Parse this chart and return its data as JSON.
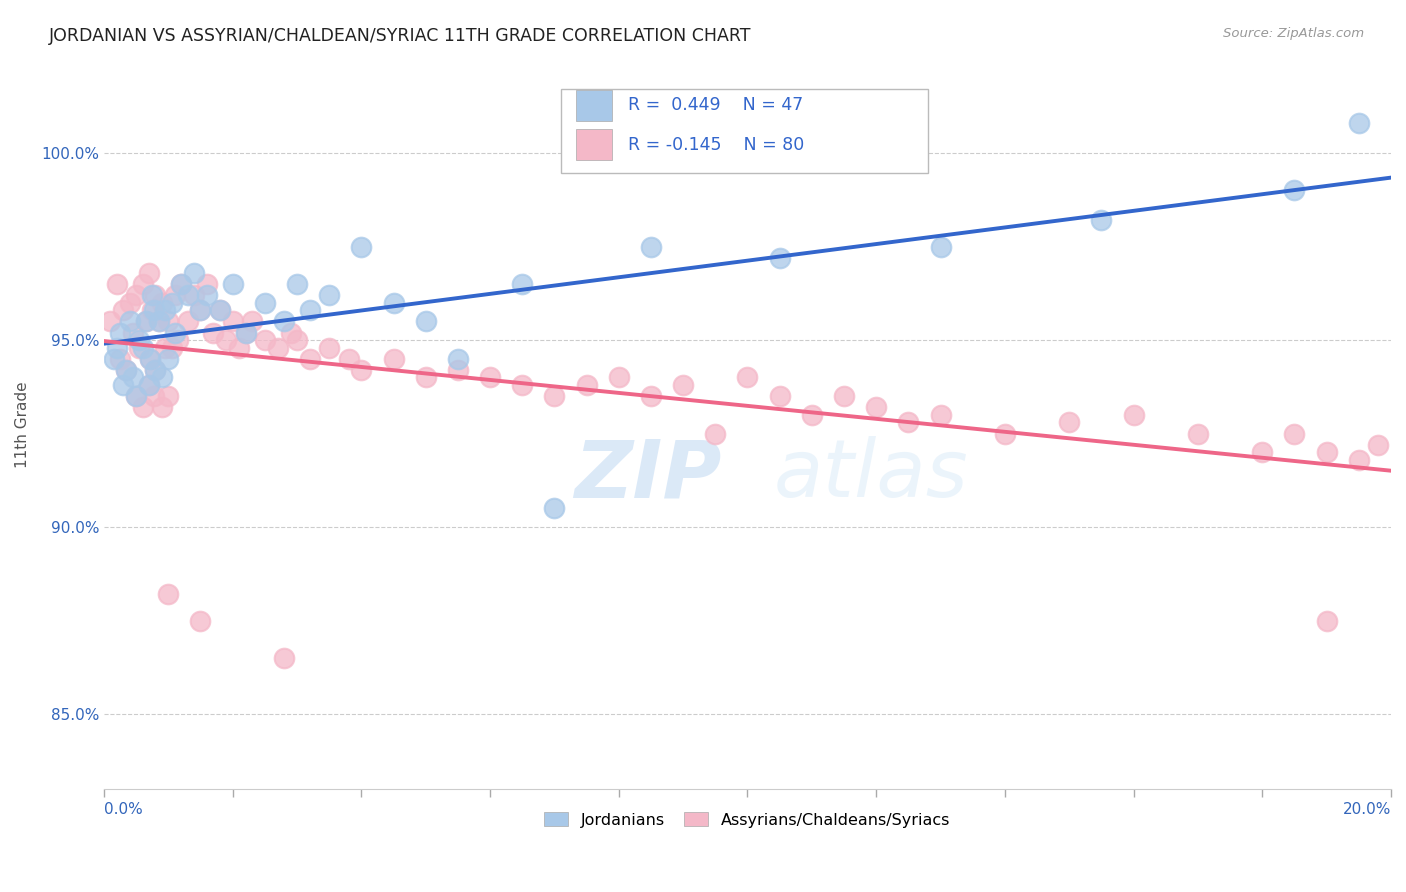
{
  "title": "JORDANIAN VS ASSYRIAN/CHALDEAN/SYRIAC 11TH GRADE CORRELATION CHART",
  "source": "Source: ZipAtlas.com",
  "ylabel": "11th Grade",
  "x_min": 0.0,
  "x_max": 20.0,
  "y_min": 83.0,
  "y_max": 102.5,
  "blue_R": 0.449,
  "blue_N": 47,
  "pink_R": -0.145,
  "pink_N": 80,
  "blue_color": "#A8C8E8",
  "pink_color": "#F4B8C8",
  "line_blue": "#3366CC",
  "line_pink": "#EE6688",
  "legend_label_blue": "Jordanians",
  "legend_label_pink": "Assyrians/Chaldeans/Syriacs",
  "watermark_zip": "ZIP",
  "watermark_atlas": "atlas",
  "blue_x": [
    0.15,
    0.2,
    0.25,
    0.3,
    0.35,
    0.4,
    0.45,
    0.5,
    0.55,
    0.6,
    0.65,
    0.7,
    0.72,
    0.75,
    0.78,
    0.8,
    0.85,
    0.9,
    0.95,
    1.0,
    1.05,
    1.1,
    1.2,
    1.3,
    1.4,
    1.5,
    1.6,
    1.8,
    2.0,
    2.2,
    2.5,
    2.8,
    3.0,
    3.2,
    3.5,
    4.0,
    4.5,
    5.0,
    5.5,
    6.5,
    7.0,
    8.5,
    10.5,
    13.0,
    15.5,
    18.5,
    19.5
  ],
  "blue_y": [
    94.5,
    94.8,
    95.2,
    93.8,
    94.2,
    95.5,
    94.0,
    93.5,
    95.0,
    94.8,
    95.5,
    93.8,
    94.5,
    96.2,
    95.8,
    94.2,
    95.5,
    94.0,
    95.8,
    94.5,
    96.0,
    95.2,
    96.5,
    96.2,
    96.8,
    95.8,
    96.2,
    95.8,
    96.5,
    95.2,
    96.0,
    95.5,
    96.5,
    95.8,
    96.2,
    97.5,
    96.0,
    95.5,
    94.5,
    96.5,
    90.5,
    97.5,
    97.2,
    97.5,
    98.2,
    99.0,
    100.8
  ],
  "pink_x": [
    0.1,
    0.2,
    0.25,
    0.3,
    0.35,
    0.4,
    0.45,
    0.5,
    0.5,
    0.55,
    0.6,
    0.6,
    0.65,
    0.7,
    0.7,
    0.72,
    0.75,
    0.78,
    0.8,
    0.8,
    0.85,
    0.9,
    0.9,
    0.95,
    1.0,
    1.0,
    1.05,
    1.1,
    1.15,
    1.2,
    1.3,
    1.4,
    1.5,
    1.6,
    1.7,
    1.8,
    1.9,
    2.0,
    2.1,
    2.2,
    2.3,
    2.5,
    2.7,
    2.9,
    3.0,
    3.2,
    3.5,
    3.8,
    4.0,
    4.5,
    5.0,
    5.5,
    6.0,
    6.5,
    7.0,
    7.5,
    8.0,
    8.5,
    9.0,
    9.5,
    10.0,
    10.5,
    11.0,
    11.5,
    12.0,
    12.5,
    13.0,
    14.0,
    15.0,
    16.0,
    17.0,
    18.0,
    18.5,
    19.0,
    19.5,
    19.8,
    1.0,
    1.5,
    2.8,
    19.0
  ],
  "pink_y": [
    95.5,
    96.5,
    94.5,
    95.8,
    94.2,
    96.0,
    95.2,
    93.5,
    96.2,
    94.8,
    93.2,
    96.5,
    95.5,
    93.8,
    96.8,
    94.5,
    95.8,
    93.5,
    96.2,
    94.2,
    95.5,
    93.2,
    96.0,
    94.8,
    95.5,
    93.5,
    94.8,
    96.2,
    95.0,
    96.5,
    95.5,
    96.2,
    95.8,
    96.5,
    95.2,
    95.8,
    95.0,
    95.5,
    94.8,
    95.2,
    95.5,
    95.0,
    94.8,
    95.2,
    95.0,
    94.5,
    94.8,
    94.5,
    94.2,
    94.5,
    94.0,
    94.2,
    94.0,
    93.8,
    93.5,
    93.8,
    94.0,
    93.5,
    93.8,
    92.5,
    94.0,
    93.5,
    93.0,
    93.5,
    93.2,
    92.8,
    93.0,
    92.5,
    92.8,
    93.0,
    92.5,
    92.0,
    92.5,
    92.0,
    91.8,
    92.2,
    88.2,
    87.5,
    86.5,
    87.5
  ]
}
